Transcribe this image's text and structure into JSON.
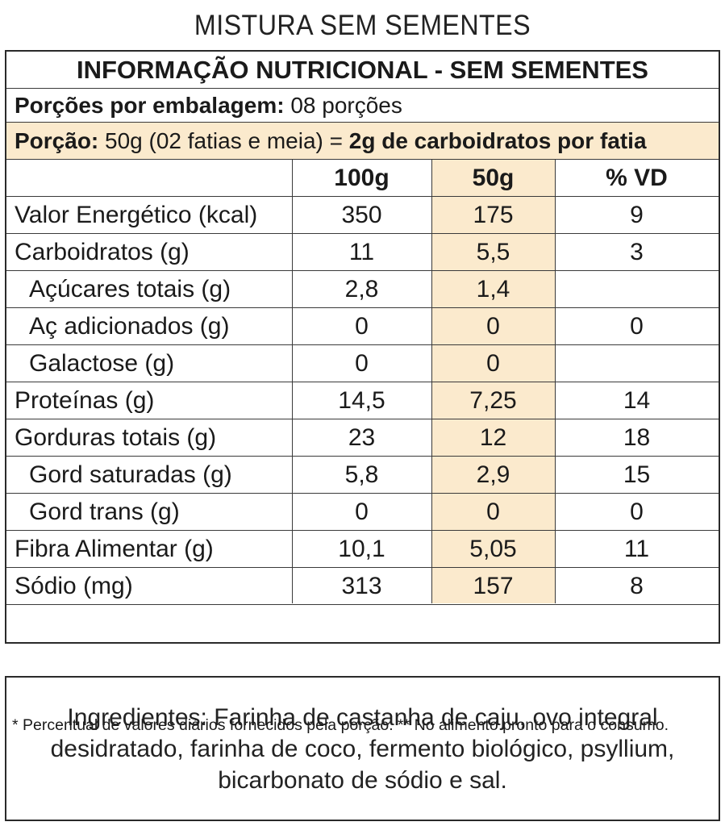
{
  "title": "MISTURA SEM SEMENTES",
  "table": {
    "banner": "INFORMAÇÃO NUTRICIONAL - SEM SEMENTES",
    "porcoes_label": "Porções por embalagem:",
    "porcoes_value": "08 porções",
    "porcao_label": "Porção:",
    "porcao_value": "50g (02 fatias e meia) = ",
    "porcao_bold": "2g de carboidratos por fatia",
    "headers": [
      "",
      "100g",
      "50g",
      "% VD"
    ],
    "rows": [
      {
        "label": "Valor Energético (kcal)",
        "v100": "350",
        "v50": "175",
        "vd": "9",
        "sub": false
      },
      {
        "label": "Carboidratos (g)",
        "v100": "11",
        "v50": "5,5",
        "vd": "3",
        "sub": false
      },
      {
        "label": "Açúcares totais (g)",
        "v100": "2,8",
        "v50": "1,4",
        "vd": "",
        "sub": true
      },
      {
        "label": "Aç adicionados (g)",
        "v100": "0",
        "v50": "0",
        "vd": "0",
        "sub": true
      },
      {
        "label": "Galactose (g)",
        "v100": "0",
        "v50": "0",
        "vd": "",
        "sub": true
      },
      {
        "label": "Proteínas (g)",
        "v100": "14,5",
        "v50": "7,25",
        "vd": "14",
        "sub": false
      },
      {
        "label": "Gorduras totais (g)",
        "v100": "23",
        "v50": "12",
        "vd": "18",
        "sub": false
      },
      {
        "label": "Gord saturadas (g)",
        "v100": "5,8",
        "v50": "2,9",
        "vd": "15",
        "sub": true
      },
      {
        "label": "Gord trans (g)",
        "v100": "0",
        "v50": "0",
        "vd": "0",
        "sub": true
      },
      {
        "label": "Fibra Alimentar (g)",
        "v100": "10,1",
        "v50": "5,05",
        "vd": "11",
        "sub": false
      },
      {
        "label": "Sódio (mg)",
        "v100": "313",
        "v50": "157",
        "vd": "8",
        "sub": false
      }
    ],
    "footnote": "* Percentual de valores diários fornecidos pela porção. ** No alimento pronto para o consumo."
  },
  "ingredients": "Ingredientes: Farinha de castanha de caju, ovo integral desidratado, farinha de coco, fermento biológico, psyllium, bicarbonato de sódio e sal.",
  "colors": {
    "highlight": "#fbeacd",
    "border": "#2a2a2a"
  }
}
